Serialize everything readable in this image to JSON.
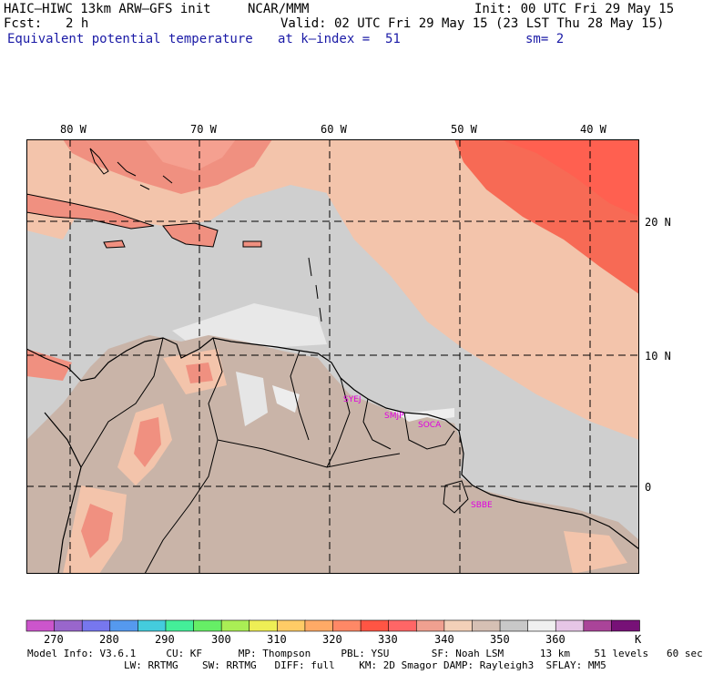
{
  "header": {
    "model": "HAIC–HIWC 13km ARW–GFS init",
    "org": "NCAR/MMM",
    "init": "Init: 00 UTC Fri 29 May 15",
    "fcst_label": "Fcst:",
    "fcst_value": "2 h",
    "valid": "Valid: 02 UTC Fri 29 May 15 (23 LST Thu 28 May 15)",
    "field": "Equivalent potential temperature",
    "level": "at k–index =  51",
    "smoothing": "sm= 2"
  },
  "map": {
    "lon_labels": [
      "80 W",
      "70 W",
      "60 W",
      "50 W",
      "40 W"
    ],
    "lat_labels": [
      "20 N",
      "10 N",
      "0"
    ],
    "stations": [
      "SYEJ",
      "SMJP",
      "SOCA",
      "SBBE"
    ],
    "station_color": "#e000e0",
    "colors": {
      "land_base": "#c9b4a8",
      "ocean_base": "#cfcfcf",
      "warm_ne": "#f76a55",
      "hot": "#f09080",
      "warm": "#f3c4ab",
      "white": "#f0f0f0"
    }
  },
  "colorbar": {
    "colors": [
      "#cc55cc",
      "#9966cc",
      "#7777ee",
      "#5599ee",
      "#44ccdd",
      "#44ee99",
      "#66ee66",
      "#aaee55",
      "#eeee55",
      "#ffcc66",
      "#ffaa66",
      "#ff8866",
      "#ff5544",
      "#ff6666",
      "#f0a090",
      "#f3d0b8",
      "#d6c0b4",
      "#c8c8c8",
      "#f0f0f0",
      "#e6c6e6",
      "#aa4499",
      "#771177"
    ],
    "labels": [
      "270",
      "280",
      "290",
      "300",
      "310",
      "320",
      "330",
      "340",
      "350",
      "360"
    ],
    "unit": "K"
  },
  "footer": {
    "line1": "Model Info: V3.6.1     CU: KF      MP: Thompson     PBL: YSU       SF: Noah LSM      13 km    51 levels   60 sec",
    "line2": "                LW: RRTMG    SW: RRTMG   DIFF: full    KM: 2D Smagor DAMP: Rayleigh3  SFLAY: MM5"
  }
}
